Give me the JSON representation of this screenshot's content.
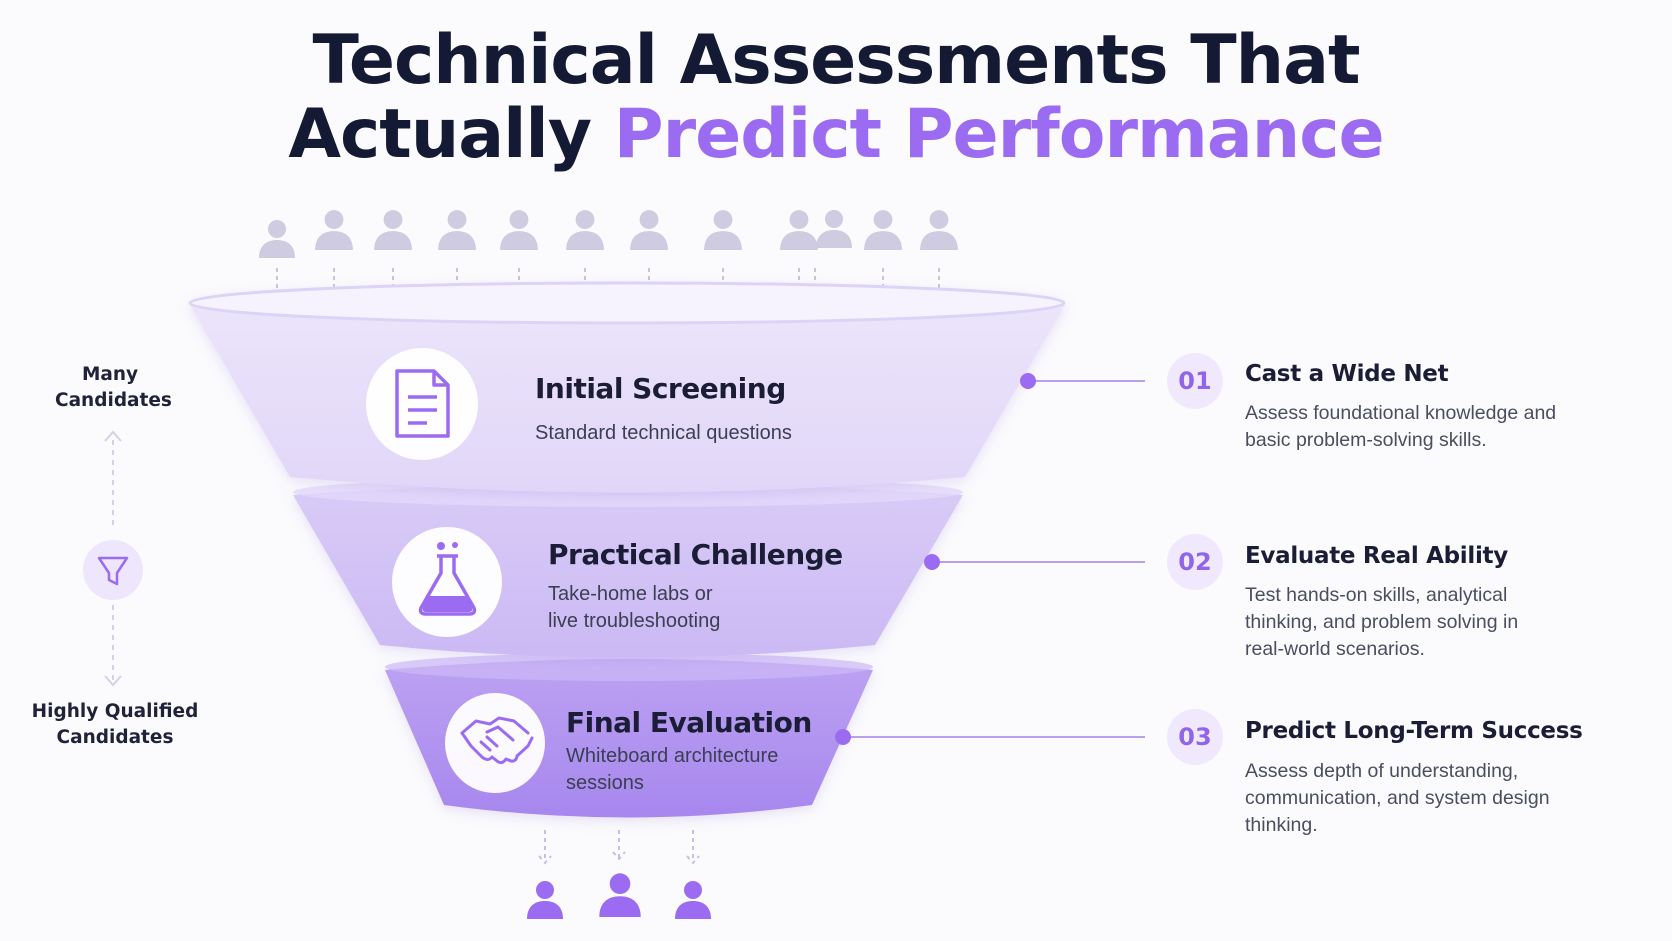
{
  "title": {
    "line1": "Technical Assessments That",
    "line2_dark": "Actually",
    "line2_accent": "Predict Performance"
  },
  "colors": {
    "accent": "#9b6cf2",
    "dark_text": "#141a33",
    "badge_bg": "#f0e9fd"
  },
  "funnel": {
    "stages": [
      {
        "title": "Initial Screening",
        "description": "Standard technical questions",
        "icon": "document-icon"
      },
      {
        "title": "Practical Challenge",
        "description": "Take-home labs or live troubleshooting",
        "icon": "flask-icon"
      },
      {
        "title": "Final Evaluation",
        "description": "Whiteboard architecture sessions",
        "icon": "handshake-icon"
      }
    ]
  },
  "steps": [
    {
      "number": "01",
      "title": "Cast a Wide Net",
      "description": "Assess foundational knowledge and basic problem-solving skills."
    },
    {
      "number": "02",
      "title": "Evaluate Real Ability",
      "description": "Test hands-on skills, analytical thinking, and problem solving in real-world scenarios."
    },
    {
      "number": "03",
      "title": "Predict Long-Term Success",
      "description": "Assess depth of understanding, communication, and system design thinking."
    }
  ],
  "side": {
    "top_label": "Many Candidates",
    "bottom_label": "Highly Qualified Candidates",
    "icon": "filter-icon"
  },
  "candidates_in_count": 12,
  "candidates_out_count": 3
}
